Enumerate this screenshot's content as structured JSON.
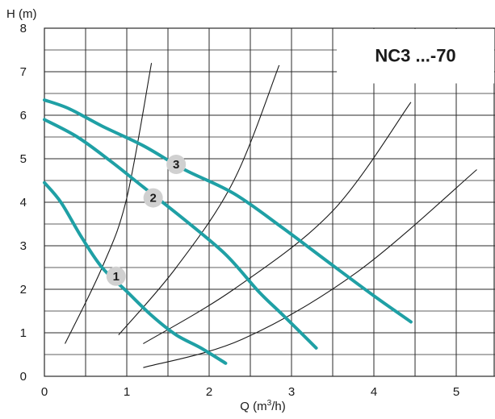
{
  "chart_data": {
    "type": "line",
    "title": "NC3 ...-70",
    "xlabel_prefix": "Q (m",
    "xlabel_sup": "3",
    "xlabel_suffix": "/h)",
    "ylabel": "H (m)",
    "xlim": [
      0,
      5.5
    ],
    "ylim": [
      0,
      8
    ],
    "x_ticks": [
      "0",
      "1",
      "2",
      "3",
      "4",
      "5"
    ],
    "y_ticks": [
      "0",
      "1",
      "2",
      "3",
      "4",
      "5",
      "6",
      "7",
      "8"
    ],
    "grid": true,
    "series": [
      {
        "name": "1",
        "label": "1",
        "label_at": [
          0.87,
          2.3
        ],
        "points": [
          [
            0,
            4.45
          ],
          [
            0.2,
            4.0
          ],
          [
            0.45,
            3.2
          ],
          [
            0.7,
            2.5
          ],
          [
            1.0,
            1.95
          ],
          [
            1.3,
            1.4
          ],
          [
            1.6,
            0.95
          ],
          [
            1.9,
            0.65
          ],
          [
            2.2,
            0.3
          ]
        ]
      },
      {
        "name": "2",
        "label": "2",
        "label_at": [
          1.32,
          4.1
        ],
        "points": [
          [
            0,
            5.9
          ],
          [
            0.4,
            5.5
          ],
          [
            0.8,
            4.95
          ],
          [
            1.2,
            4.35
          ],
          [
            1.7,
            3.6
          ],
          [
            2.2,
            2.8
          ],
          [
            2.6,
            1.95
          ],
          [
            2.9,
            1.4
          ],
          [
            3.3,
            0.65
          ]
        ]
      },
      {
        "name": "3",
        "label": "3",
        "label_at": [
          1.6,
          4.87
        ],
        "points": [
          [
            0,
            6.35
          ],
          [
            0.3,
            6.15
          ],
          [
            0.7,
            5.75
          ],
          [
            1.2,
            5.3
          ],
          [
            1.7,
            4.75
          ],
          [
            2.3,
            4.2
          ],
          [
            2.9,
            3.4
          ],
          [
            3.5,
            2.55
          ],
          [
            4.0,
            1.85
          ],
          [
            4.45,
            1.25
          ]
        ]
      }
    ],
    "system_curves": [
      [
        [
          0.25,
          0.75
        ],
        [
          0.7,
          2.5
        ],
        [
          1.0,
          4.1
        ],
        [
          1.3,
          7.2
        ]
      ],
      [
        [
          0.9,
          0.95
        ],
        [
          1.6,
          2.5
        ],
        [
          2.3,
          4.5
        ],
        [
          2.85,
          7.15
        ]
      ],
      [
        [
          1.2,
          0.75
        ],
        [
          2.3,
          2.0
        ],
        [
          3.5,
          3.8
        ],
        [
          4.45,
          6.3
        ]
      ],
      [
        [
          1.2,
          0.2
        ],
        [
          2.4,
          0.85
        ],
        [
          3.8,
          2.4
        ],
        [
          5.25,
          4.75
        ]
      ]
    ],
    "colors": {
      "pump_curve": "#1fa0a5",
      "system_curve": "#1a1a1a",
      "grid": "#2a2a2a",
      "badge_fill": "#d0d0d0"
    }
  }
}
